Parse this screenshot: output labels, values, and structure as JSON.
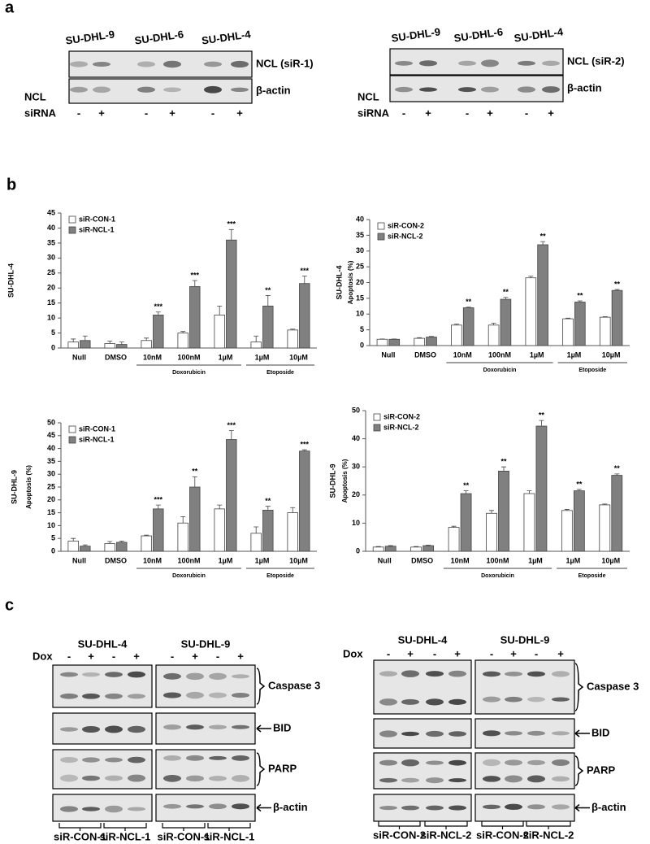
{
  "panel_labels": [
    "a",
    "b",
    "c"
  ],
  "blot_a": [
    {
      "cell_lines": [
        "SU-DHL-9",
        "SU-DHL-6",
        "SU-DHL-4"
      ],
      "rows": [
        "NCL (siR-1)",
        "β-actin"
      ],
      "side_label": "NCL",
      "lane_label": "siRNA",
      "lanes": [
        "-",
        "+",
        "-",
        "+",
        "-",
        "+"
      ]
    },
    {
      "cell_lines": [
        "SU-DHL-9",
        "SU-DHL-6",
        "SU-DHL-4"
      ],
      "rows": [
        "NCL (siR-2)",
        "β-actin"
      ],
      "side_label": "NCL",
      "lane_label": "siRNA",
      "lanes": [
        "-",
        "+",
        "-",
        "+",
        "-",
        "+"
      ]
    }
  ],
  "blot_c": [
    {
      "cell_lines": [
        "SU-DHL-4",
        "SU-DHL-9"
      ],
      "lane_label": "Dox",
      "lanes": [
        "-",
        "+",
        "-",
        "+",
        "-",
        "+",
        "-",
        "+"
      ],
      "rows": [
        "Caspase 3",
        "BID",
        "PARP",
        "β-actin"
      ],
      "groups": [
        "siR-CON-1",
        "siR-NCL-1",
        "siR-CON-1",
        "siR-NCL-1"
      ]
    },
    {
      "cell_lines": [
        "SU-DHL-4",
        "SU-DHL-9"
      ],
      "lane_label": "Dox",
      "lanes": [
        "-",
        "+",
        "-",
        "+",
        "-",
        "+",
        "-",
        "+"
      ],
      "rows": [
        "Caspase 3",
        "BID",
        "PARP",
        "β-actin"
      ],
      "groups": [
        "siR-CON-2",
        "siR-NCL-2",
        "siR-CON-2",
        "siR-NCL-2"
      ]
    }
  ],
  "chart_data": [
    {
      "type": "bar",
      "ylabel": "SU-DHL-4",
      "ylim": [
        0,
        45
      ],
      "yticks": [
        0,
        5,
        10,
        15,
        20,
        25,
        30,
        35,
        40,
        45
      ],
      "legend": "top-left",
      "categories": [
        "Null",
        "DMSO",
        "10nM",
        "100nM",
        "1µM",
        "1µM",
        "10µM"
      ],
      "group_labels": [
        null,
        null,
        "Doxorubicin",
        "Doxorubicin",
        "Doxorubicin",
        "Etoposide",
        "Etoposide"
      ],
      "series": [
        {
          "name": "siR-CON-1",
          "color": "#ffffff",
          "values": [
            2,
            1.5,
            2.5,
            5,
            11,
            2,
            6
          ],
          "errors": [
            1,
            0.8,
            0.8,
            0.5,
            3,
            2,
            0.3
          ],
          "significance": [
            null,
            null,
            null,
            null,
            null,
            null,
            null
          ]
        },
        {
          "name": "siR-NCL-1",
          "color": "#808080",
          "values": [
            2.5,
            1.2,
            11,
            20.5,
            36,
            14,
            21.5
          ],
          "errors": [
            1.5,
            0.8,
            1,
            2,
            3.5,
            3.5,
            2.5
          ],
          "significance": [
            null,
            null,
            "***",
            "***",
            "***",
            "**",
            "***"
          ]
        }
      ]
    },
    {
      "type": "bar",
      "ylabel": "SU-DHL-4",
      "ylabel2": "Apoptosis (%)",
      "ylim": [
        0,
        40
      ],
      "yticks": [
        0,
        5,
        10,
        15,
        20,
        25,
        30,
        35,
        40
      ],
      "legend": "top-left",
      "categories": [
        "Null",
        "DMSO",
        "10nM",
        "100nM",
        "1µM",
        "1µM",
        "10µM"
      ],
      "group_labels": [
        null,
        null,
        "Doxorubicin",
        "Doxorubicin",
        "Doxorubicin",
        "Etoposide",
        "Etoposide"
      ],
      "series": [
        {
          "name": "siR-CON-2",
          "color": "#ffffff",
          "values": [
            2,
            2.3,
            6.5,
            6.5,
            21.5,
            8.5,
            9
          ],
          "errors": [
            0.1,
            0.2,
            0.3,
            0.6,
            0.5,
            0.2,
            0.2
          ],
          "significance": [
            null,
            null,
            null,
            null,
            null,
            null,
            null
          ]
        },
        {
          "name": "siR-NCL-2",
          "color": "#808080",
          "values": [
            2,
            2.7,
            12,
            14.7,
            32,
            13.8,
            17.5
          ],
          "errors": [
            0.1,
            0.2,
            0.2,
            0.6,
            1,
            0.4,
            0.3
          ],
          "significance": [
            null,
            null,
            "**",
            "**",
            "**",
            "**",
            "**"
          ]
        }
      ]
    },
    {
      "type": "bar",
      "ylabel": "SU-DHL-9",
      "ylabel2": "Apoptosis (%)",
      "ylim": [
        0,
        50
      ],
      "yticks": [
        0,
        5,
        10,
        15,
        20,
        25,
        30,
        35,
        40,
        45,
        50
      ],
      "legend": "top-left",
      "categories": [
        "Null",
        "DMSO",
        "10nM",
        "100nM",
        "1µM",
        "1µM",
        "10µM"
      ],
      "group_labels": [
        null,
        null,
        "Doxorubicin",
        "Doxorubicin",
        "Doxorubicin",
        "Etoposide",
        "Etoposide"
      ],
      "series": [
        {
          "name": "siR-CON-1",
          "color": "#ffffff",
          "values": [
            4,
            3,
            6,
            11,
            16.5,
            7,
            15
          ],
          "errors": [
            1,
            0.8,
            0.3,
            2.5,
            1.5,
            2.5,
            2
          ],
          "significance": [
            null,
            null,
            null,
            null,
            null,
            null,
            null
          ]
        },
        {
          "name": "siR-NCL-1",
          "color": "#808080",
          "values": [
            2,
            3.5,
            16.5,
            25,
            43.5,
            16,
            39
          ],
          "errors": [
            0.5,
            0.5,
            1.5,
            4,
            3.5,
            1.5,
            0.5
          ],
          "significance": [
            null,
            null,
            "***",
            "**",
            "***",
            "**",
            "***"
          ]
        }
      ]
    },
    {
      "type": "bar",
      "ylabel": "SU-DHL-9",
      "ylabel2": "Apoptosis (%)",
      "ylim": [
        0,
        50
      ],
      "yticks": [
        0,
        10,
        20,
        30,
        40,
        50
      ],
      "legend": "top-left",
      "categories": [
        "Null",
        "DMSO",
        "10nM",
        "100nM",
        "1µM",
        "1µM",
        "10µM"
      ],
      "group_labels": [
        null,
        null,
        "Doxorubicin",
        "Doxorubicin",
        "Doxorubicin",
        "Etoposide",
        "Etoposide"
      ],
      "series": [
        {
          "name": "siR-CON-2",
          "color": "#ffffff",
          "values": [
            1.5,
            1.5,
            8.5,
            13.5,
            20.5,
            14.5,
            16.5
          ],
          "errors": [
            0.2,
            0.2,
            0.4,
            1,
            1,
            0.4,
            0.3
          ],
          "significance": [
            null,
            null,
            null,
            null,
            null,
            null,
            null
          ]
        },
        {
          "name": "siR-NCL-2",
          "color": "#808080",
          "values": [
            1.8,
            2,
            20.5,
            28.5,
            44.5,
            21.5,
            27
          ],
          "errors": [
            0.2,
            0.2,
            1,
            1.5,
            2,
            0.5,
            0.5
          ],
          "significance": [
            null,
            null,
            "**",
            "**",
            "**",
            "**",
            "**"
          ]
        }
      ]
    }
  ]
}
